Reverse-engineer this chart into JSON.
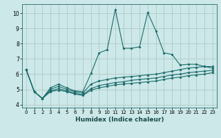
{
  "xlabel": "Humidex (Indice chaleur)",
  "background_color": "#cce8e8",
  "grid_color": "#b0c8c8",
  "line_color": "#1a6b6b",
  "xlim": [
    -0.5,
    23.5
  ],
  "ylim": [
    3.8,
    10.6
  ],
  "yticks": [
    4,
    5,
    6,
    7,
    8,
    9,
    10
  ],
  "xticks": [
    0,
    1,
    2,
    3,
    4,
    5,
    6,
    7,
    8,
    9,
    10,
    11,
    12,
    13,
    14,
    15,
    16,
    17,
    18,
    19,
    20,
    21,
    22,
    23
  ],
  "series": [
    {
      "x": [
        0,
        1,
        2,
        3,
        4,
        5,
        6,
        7,
        8,
        9,
        10,
        11,
        12,
        13,
        14,
        15,
        16,
        17,
        18,
        19,
        20,
        21,
        22,
        23
      ],
      "y": [
        6.3,
        4.85,
        4.4,
        5.1,
        5.35,
        5.1,
        4.9,
        4.85,
        6.05,
        7.4,
        7.6,
        10.25,
        7.7,
        7.7,
        7.8,
        10.05,
        8.85,
        7.4,
        7.3,
        6.6,
        6.65,
        6.65,
        6.5,
        6.4
      ]
    },
    {
      "x": [
        0,
        1,
        2,
        3,
        4,
        5,
        6,
        7,
        8,
        9,
        10,
        11,
        12,
        13,
        14,
        15,
        16,
        17,
        18,
        19,
        20,
        21,
        22,
        23
      ],
      "y": [
        6.3,
        4.85,
        4.4,
        5.0,
        5.2,
        5.0,
        4.85,
        4.75,
        5.35,
        5.55,
        5.65,
        5.75,
        5.8,
        5.85,
        5.9,
        5.95,
        6.0,
        6.1,
        6.2,
        6.3,
        6.4,
        6.45,
        6.5,
        6.5
      ]
    },
    {
      "x": [
        0,
        1,
        2,
        3,
        4,
        5,
        6,
        7,
        8,
        9,
        10,
        11,
        12,
        13,
        14,
        15,
        16,
        17,
        18,
        19,
        20,
        21,
        22,
        23
      ],
      "y": [
        6.3,
        4.85,
        4.4,
        4.9,
        5.05,
        4.9,
        4.75,
        4.65,
        5.05,
        5.25,
        5.35,
        5.45,
        5.5,
        5.6,
        5.65,
        5.7,
        5.75,
        5.85,
        5.95,
        6.0,
        6.1,
        6.15,
        6.2,
        6.25
      ]
    },
    {
      "x": [
        0,
        1,
        2,
        3,
        4,
        5,
        6,
        7,
        8,
        9,
        10,
        11,
        12,
        13,
        14,
        15,
        16,
        17,
        18,
        19,
        20,
        21,
        22,
        23
      ],
      "y": [
        6.3,
        4.85,
        4.4,
        4.85,
        4.95,
        4.85,
        4.7,
        4.6,
        4.95,
        5.1,
        5.2,
        5.3,
        5.35,
        5.4,
        5.45,
        5.5,
        5.55,
        5.65,
        5.75,
        5.8,
        5.9,
        5.95,
        6.0,
        6.1
      ]
    }
  ]
}
